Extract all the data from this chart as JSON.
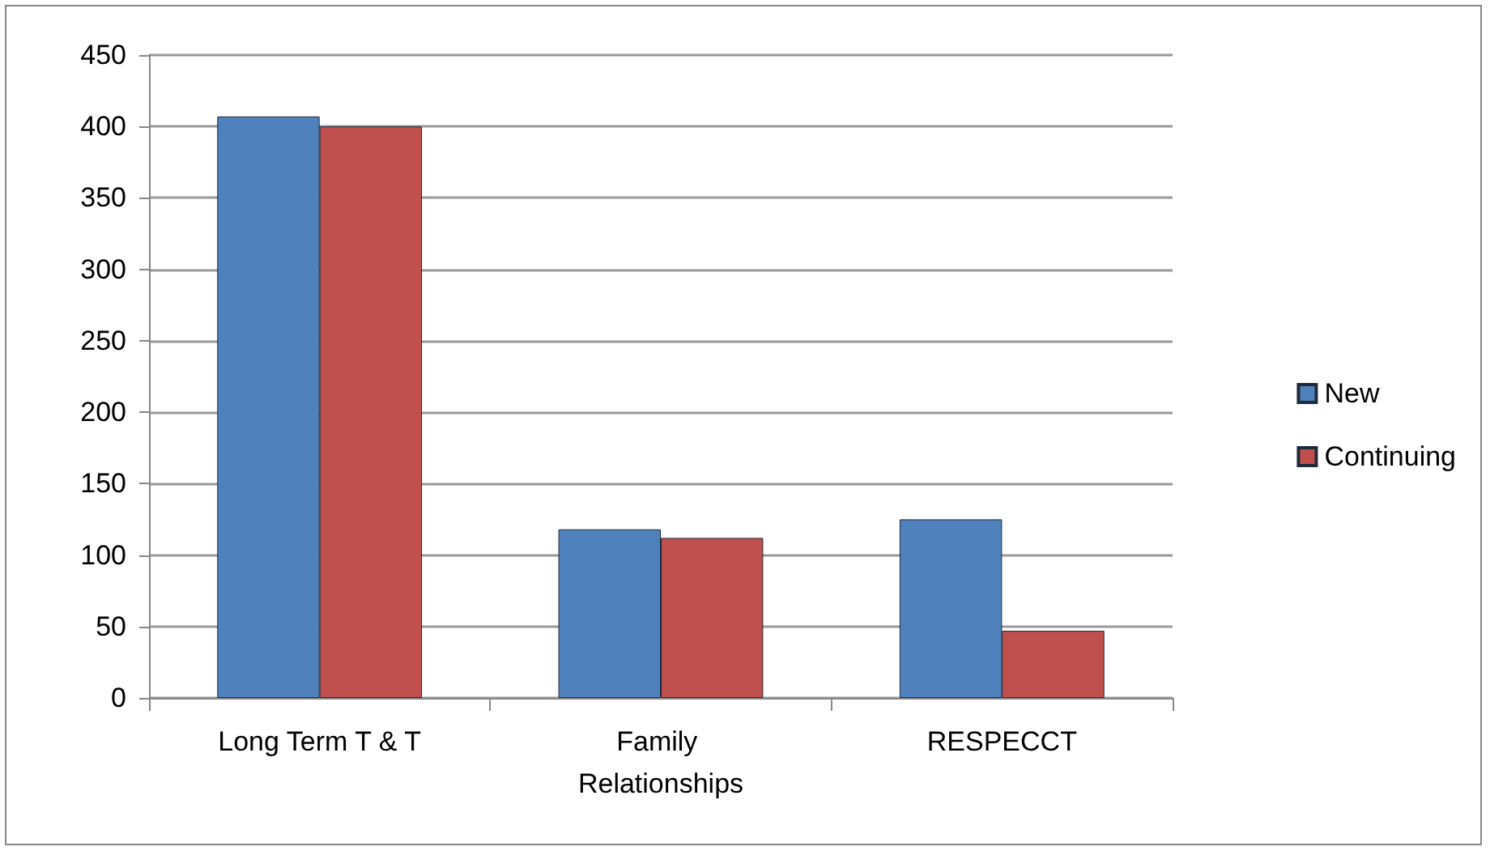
{
  "chart_data": {
    "type": "bar",
    "categories": [
      "Long Term T & T",
      "Family Relationships",
      "RESPECCT"
    ],
    "series": [
      {
        "name": "New",
        "color": "#4f81bd",
        "values": [
          407,
          118,
          125
        ]
      },
      {
        "name": "Continuing",
        "color": "#c0504d",
        "values": [
          400,
          112,
          47
        ]
      }
    ],
    "ylim": [
      0,
      450
    ],
    "yticks": [
      0,
      50,
      100,
      150,
      200,
      250,
      300,
      350,
      400,
      450
    ],
    "grid": "y",
    "legend": "right"
  }
}
